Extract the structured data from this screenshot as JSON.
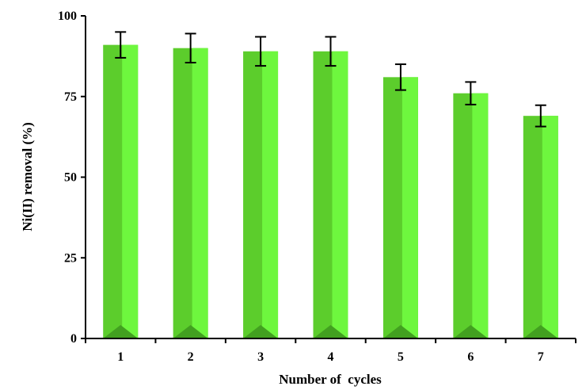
{
  "chart_data": {
    "type": "bar",
    "categories": [
      "1",
      "2",
      "3",
      "4",
      "5",
      "6",
      "7"
    ],
    "values": [
      91,
      90,
      89,
      89,
      81,
      76,
      69
    ],
    "errors": [
      4,
      4.5,
      4.5,
      4.5,
      4,
      3.5,
      3.3
    ],
    "xlabel": "Number of  cycles",
    "ylabel": "Ni(II) removal (%)",
    "ylim": [
      0,
      100
    ],
    "yticks": [
      0,
      25,
      50,
      75,
      100
    ],
    "grid": false,
    "colors": {
      "bar_front": "#5ccd2c",
      "bar_light": "#6ef73e",
      "bar_dark": "#42a020",
      "axis": "#000000"
    }
  }
}
